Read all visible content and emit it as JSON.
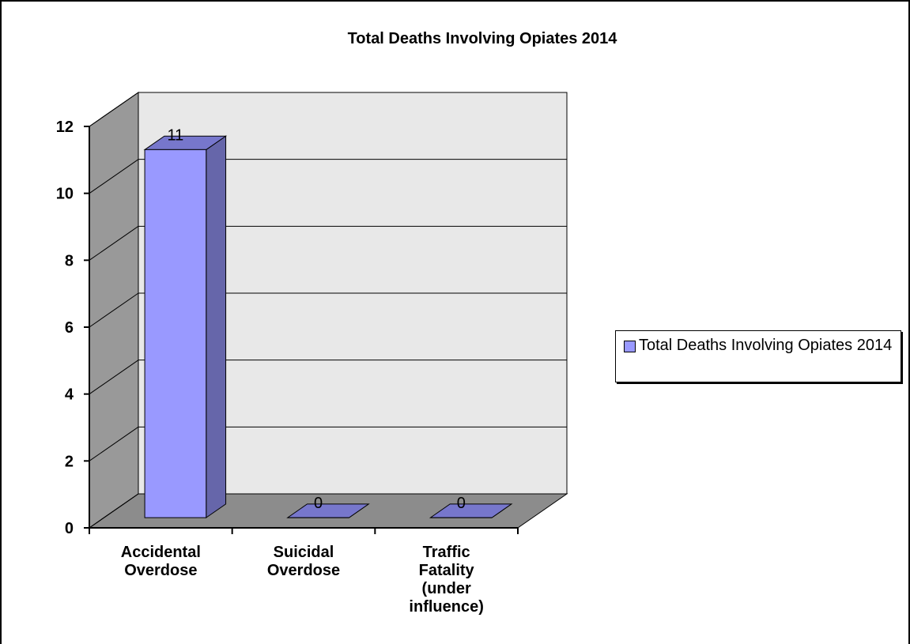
{
  "chart_data": {
    "type": "bar3d",
    "title": "Total Deaths Involving Opiates 2014",
    "categories": [
      "Accidental Overdose",
      "Suicidal Overdose",
      "Traffic Fatality (under influence)"
    ],
    "series": [
      {
        "name": "Total Deaths Involving Opiates 2014",
        "color": "#9999ff",
        "values": [
          11,
          0,
          0
        ]
      }
    ],
    "ylim": [
      0,
      12
    ],
    "yticks": [
      0,
      2,
      4,
      6,
      8,
      10,
      12
    ],
    "grid": true,
    "legend": "right"
  }
}
